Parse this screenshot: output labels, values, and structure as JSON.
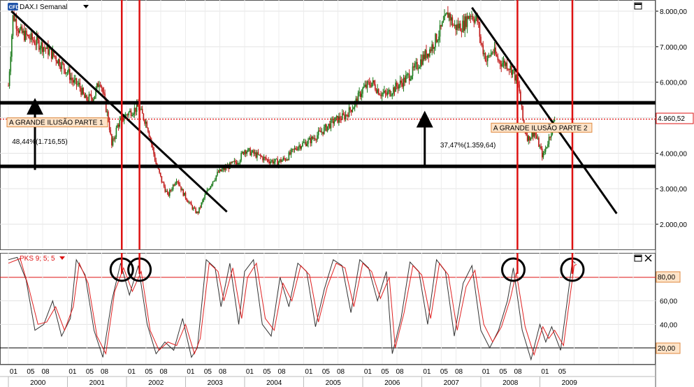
{
  "header": {
    "badge": "CFD",
    "instrument": "DAX.I Semanal",
    "dropdown_icon": "triangle-down-icon",
    "window_icon": "maximize-icon"
  },
  "indicator_header": {
    "label": "PKS 9; 5; 5",
    "dropdown_icon": "triangle-down-icon",
    "window_icons": [
      "maximize-icon",
      "close-icon"
    ]
  },
  "colors": {
    "candle_up": "#1a7a1a",
    "candle_down": "#c01818",
    "trend_line": "#000000",
    "support_resistance": "#000000",
    "vertical_marker": "#dd1111",
    "current_price_line": "#dd1111",
    "oscillator_main": "#333333",
    "oscillator_signal": "#e02020",
    "annotation_bg": "#fde3c8"
  },
  "chart_data": [
    {
      "type": "candlestick",
      "title": "DAX.I Semanal",
      "ylim": [
        1200,
        8300
      ],
      "y_ticks": [
        "2.000,00",
        "3.000,00",
        "4.000,00",
        "5.000,00",
        "6.000,00",
        "7.000,00",
        "8.000,00"
      ],
      "y_tick_values": [
        2000,
        3000,
        4000,
        5000,
        6000,
        7000,
        8000
      ],
      "current_price": "4.960,52",
      "current_price_value": 4960.52,
      "price_path": [
        [
          2000.0,
          5900
        ],
        [
          2000.08,
          7900
        ],
        [
          2000.2,
          7400
        ],
        [
          2000.4,
          7200
        ],
        [
          2000.6,
          7000
        ],
        [
          2000.8,
          6700
        ],
        [
          2001.0,
          6300
        ],
        [
          2001.1,
          6000
        ],
        [
          2001.2,
          5900
        ],
        [
          2001.3,
          5500
        ],
        [
          2001.45,
          5600
        ],
        [
          2001.55,
          6100
        ],
        [
          2001.7,
          4900
        ],
        [
          2001.75,
          4200
        ],
        [
          2001.85,
          4800
        ],
        [
          2002.0,
          5100
        ],
        [
          2002.2,
          5300
        ],
        [
          2002.35,
          4800
        ],
        [
          2002.5,
          3700
        ],
        [
          2002.6,
          3200
        ],
        [
          2002.7,
          2800
        ],
        [
          2002.85,
          3300
        ],
        [
          2002.95,
          2900
        ],
        [
          2003.1,
          2500
        ],
        [
          2003.2,
          2300
        ],
        [
          2003.3,
          2700
        ],
        [
          2003.45,
          3200
        ],
        [
          2003.55,
          3450
        ],
        [
          2003.7,
          3600
        ],
        [
          2003.9,
          3800
        ],
        [
          2004.0,
          4100
        ],
        [
          2004.2,
          3950
        ],
        [
          2004.4,
          3800
        ],
        [
          2004.55,
          3750
        ],
        [
          2004.7,
          3850
        ],
        [
          2004.9,
          4200
        ],
        [
          2005.1,
          4350
        ],
        [
          2005.3,
          4600
        ],
        [
          2005.5,
          4900
        ],
        [
          2005.7,
          5050
        ],
        [
          2005.85,
          5350
        ],
        [
          2006.0,
          5800
        ],
        [
          2006.15,
          6000
        ],
        [
          2006.3,
          5700
        ],
        [
          2006.4,
          5650
        ],
        [
          2006.55,
          5850
        ],
        [
          2006.7,
          6050
        ],
        [
          2006.85,
          6300
        ],
        [
          2007.0,
          6650
        ],
        [
          2007.15,
          6950
        ],
        [
          2007.3,
          7400
        ],
        [
          2007.45,
          7950
        ],
        [
          2007.55,
          7550
        ],
        [
          2007.7,
          7600
        ],
        [
          2007.82,
          7950
        ],
        [
          2007.95,
          7700
        ],
        [
          2008.0,
          7100
        ],
        [
          2008.1,
          6600
        ],
        [
          2008.2,
          6900
        ],
        [
          2008.3,
          6600
        ],
        [
          2008.45,
          6500
        ],
        [
          2008.55,
          6300
        ],
        [
          2008.65,
          5800
        ],
        [
          2008.72,
          4800
        ],
        [
          2008.8,
          4400
        ],
        [
          2008.9,
          4600
        ],
        [
          2008.97,
          4300
        ],
        [
          2009.05,
          3900
        ],
        [
          2009.15,
          4400
        ],
        [
          2009.25,
          4960
        ]
      ],
      "support_levels": [
        5420,
        3630
      ],
      "trend_lines": [
        {
          "from": [
            2000.05,
            8000
          ],
          "to": [
            2003.7,
            2350
          ]
        },
        {
          "from": [
            2007.85,
            8100
          ],
          "to": [
            2010.3,
            2300
          ]
        }
      ],
      "vertical_markers": [
        2001.92,
        2002.22,
        2008.62,
        2009.55
      ],
      "annotations": [
        {
          "text": "A GRANDE ILUSÃO PARTE 1",
          "x": 2000.0,
          "y": 4800
        },
        {
          "text": "48,44%(1.716,55)",
          "x": 2000.05,
          "y": 4260
        },
        {
          "text": "37,47%(1.359,64)",
          "x": 2007.3,
          "y": 4160
        },
        {
          "text": "A GRANDE ILUSÃO PARTE 2",
          "x": 2008.2,
          "y": 4650
        }
      ],
      "arrows": [
        {
          "x": 2000.45,
          "from": 3530,
          "to": 5320
        },
        {
          "x": 2007.05,
          "from": 3630,
          "to": 4960
        }
      ]
    },
    {
      "type": "line",
      "title": "PKS 9; 5; 5",
      "ylim": [
        2,
        104
      ],
      "y_ticks": [
        "20,00",
        "40,00",
        "60,00",
        "80,00"
      ],
      "y_tick_values": [
        20,
        40,
        60,
        80
      ],
      "reference_lines": [
        80,
        20
      ],
      "highlighted_level": "80,00",
      "highlighted_level_low": "20,00",
      "circles": [
        2001.92,
        2002.22,
        2008.55,
        2009.55
      ],
      "series": [
        {
          "values": [
            [
              2000.0,
              95
            ],
            [
              2000.15,
              97
            ],
            [
              2000.3,
              78
            ],
            [
              2000.45,
              35
            ],
            [
              2000.6,
              40
            ],
            [
              2000.75,
              60
            ],
            [
              2000.9,
              30
            ],
            [
              2001.05,
              45
            ],
            [
              2001.15,
              95
            ],
            [
              2001.3,
              82
            ],
            [
              2001.45,
              35
            ],
            [
              2001.6,
              12
            ],
            [
              2001.75,
              60
            ],
            [
              2001.9,
              92
            ],
            [
              2002.05,
              65
            ],
            [
              2002.2,
              90
            ],
            [
              2002.35,
              40
            ],
            [
              2002.5,
              15
            ],
            [
              2002.65,
              25
            ],
            [
              2002.8,
              18
            ],
            [
              2002.95,
              45
            ],
            [
              2003.1,
              12
            ],
            [
              2003.2,
              20
            ],
            [
              2003.35,
              95
            ],
            [
              2003.5,
              88
            ],
            [
              2003.6,
              55
            ],
            [
              2003.75,
              92
            ],
            [
              2003.9,
              40
            ],
            [
              2004.0,
              85
            ],
            [
              2004.15,
              95
            ],
            [
              2004.3,
              40
            ],
            [
              2004.45,
              30
            ],
            [
              2004.6,
              80
            ],
            [
              2004.75,
              55
            ],
            [
              2004.9,
              92
            ],
            [
              2005.05,
              85
            ],
            [
              2005.2,
              38
            ],
            [
              2005.35,
              70
            ],
            [
              2005.5,
              95
            ],
            [
              2005.65,
              90
            ],
            [
              2005.8,
              50
            ],
            [
              2005.95,
              95
            ],
            [
              2006.1,
              88
            ],
            [
              2006.25,
              60
            ],
            [
              2006.4,
              85
            ],
            [
              2006.5,
              15
            ],
            [
              2006.65,
              45
            ],
            [
              2006.8,
              93
            ],
            [
              2006.95,
              85
            ],
            [
              2007.1,
              40
            ],
            [
              2007.25,
              95
            ],
            [
              2007.4,
              85
            ],
            [
              2007.55,
              30
            ],
            [
              2007.7,
              75
            ],
            [
              2007.85,
              90
            ],
            [
              2008.0,
              35
            ],
            [
              2008.15,
              20
            ],
            [
              2008.3,
              35
            ],
            [
              2008.45,
              60
            ],
            [
              2008.55,
              88
            ],
            [
              2008.7,
              35
            ],
            [
              2008.85,
              10
            ],
            [
              2009.0,
              40
            ],
            [
              2009.1,
              25
            ],
            [
              2009.2,
              38
            ],
            [
              2009.35,
              18
            ],
            [
              2009.45,
              55
            ],
            [
              2009.55,
              94
            ],
            [
              2009.6,
              92
            ]
          ]
        },
        {
          "values": [
            [
              2000.0,
              92
            ],
            [
              2000.2,
              96
            ],
            [
              2000.35,
              70
            ],
            [
              2000.5,
              40
            ],
            [
              2000.65,
              42
            ],
            [
              2000.8,
              55
            ],
            [
              2000.95,
              35
            ],
            [
              2001.1,
              55
            ],
            [
              2001.2,
              92
            ],
            [
              2001.35,
              75
            ],
            [
              2001.5,
              30
            ],
            [
              2001.65,
              15
            ],
            [
              2001.8,
              68
            ],
            [
              2001.95,
              88
            ],
            [
              2002.1,
              68
            ],
            [
              2002.25,
              85
            ],
            [
              2002.4,
              35
            ],
            [
              2002.55,
              18
            ],
            [
              2002.7,
              25
            ],
            [
              2002.85,
              22
            ],
            [
              2003.0,
              40
            ],
            [
              2003.15,
              15
            ],
            [
              2003.25,
              28
            ],
            [
              2003.4,
              92
            ],
            [
              2003.55,
              85
            ],
            [
              2003.65,
              60
            ],
            [
              2003.8,
              88
            ],
            [
              2003.95,
              45
            ],
            [
              2004.05,
              80
            ],
            [
              2004.2,
              92
            ],
            [
              2004.35,
              45
            ],
            [
              2004.5,
              35
            ],
            [
              2004.65,
              75
            ],
            [
              2004.8,
              60
            ],
            [
              2004.95,
              90
            ],
            [
              2005.1,
              82
            ],
            [
              2005.25,
              42
            ],
            [
              2005.4,
              72
            ],
            [
              2005.55,
              92
            ],
            [
              2005.7,
              88
            ],
            [
              2005.85,
              55
            ],
            [
              2006.0,
              92
            ],
            [
              2006.15,
              85
            ],
            [
              2006.3,
              62
            ],
            [
              2006.45,
              80
            ],
            [
              2006.55,
              20
            ],
            [
              2006.7,
              50
            ],
            [
              2006.85,
              90
            ],
            [
              2007.0,
              82
            ],
            [
              2007.15,
              45
            ],
            [
              2007.3,
              92
            ],
            [
              2007.45,
              82
            ],
            [
              2007.6,
              35
            ],
            [
              2007.75,
              72
            ],
            [
              2007.9,
              86
            ],
            [
              2008.05,
              40
            ],
            [
              2008.2,
              25
            ],
            [
              2008.35,
              38
            ],
            [
              2008.5,
              62
            ],
            [
              2008.6,
              84
            ],
            [
              2008.75,
              38
            ],
            [
              2008.9,
              14
            ],
            [
              2009.05,
              38
            ],
            [
              2009.15,
              28
            ],
            [
              2009.25,
              35
            ],
            [
              2009.4,
              22
            ],
            [
              2009.5,
              60
            ],
            [
              2009.58,
              90
            ],
            [
              2009.62,
              91
            ]
          ]
        }
      ]
    }
  ],
  "x_axis": {
    "year_labels": [
      "2000",
      "2001",
      "2002",
      "2003",
      "2004",
      "2005",
      "2006",
      "2007",
      "2008",
      "2009"
    ],
    "month_labels": [
      "01",
      "05",
      "08"
    ]
  }
}
